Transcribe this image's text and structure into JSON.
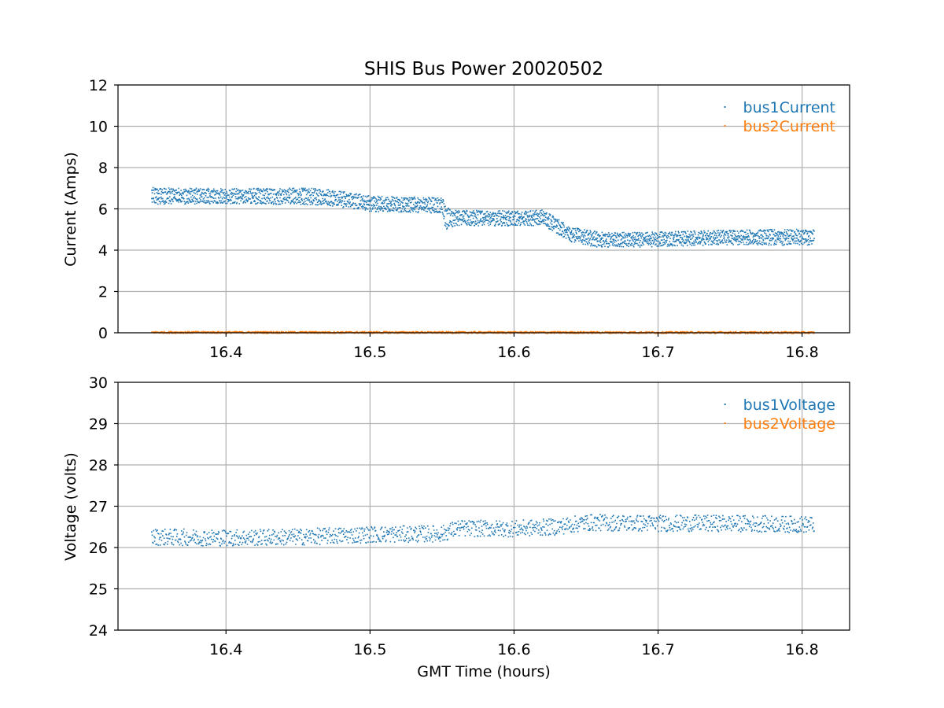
{
  "figure": {
    "title": "SHIS Bus Power 20020502"
  },
  "chart_data": [
    {
      "type": "scatter",
      "title": "SHIS Bus Power 20020502",
      "xlabel": "",
      "ylabel": "Current (Amps)",
      "xlim": [
        16.325,
        16.833
      ],
      "ylim": [
        0,
        12
      ],
      "xticks": [
        16.4,
        16.5,
        16.6,
        16.7,
        16.8
      ],
      "xtick_labels": [
        "16.4",
        "16.5",
        "16.6",
        "16.7",
        "16.8"
      ],
      "yticks": [
        0,
        2,
        4,
        6,
        8,
        10,
        12
      ],
      "ytick_labels": [
        "0",
        "2",
        "4",
        "6",
        "8",
        "10",
        "12"
      ],
      "grid": true,
      "legend_position": "top-right",
      "series": [
        {
          "name": "bus1Current",
          "color": "#1f77b4",
          "bands": [
            {
              "x": [
                16.348,
                16.4,
                16.45,
                16.47,
                16.5,
                16.55,
                16.552,
                16.56,
                16.6,
                16.62,
                16.64,
                16.66,
                16.7,
                16.75,
                16.808
              ],
              "y": [
                6.88,
                6.83,
                6.86,
                6.82,
                6.48,
                6.38,
                5.95,
                5.78,
                5.78,
                5.8,
                4.95,
                4.72,
                4.74,
                4.84,
                4.86
              ]
            },
            {
              "x": [
                16.348,
                16.4,
                16.45,
                16.47,
                16.5,
                16.55,
                16.552,
                16.56,
                16.6,
                16.62,
                16.64,
                16.66,
                16.7,
                16.75,
                16.808
              ],
              "y": [
                6.43,
                6.46,
                6.42,
                6.38,
                6.08,
                6.0,
                5.2,
                5.4,
                5.38,
                5.4,
                4.58,
                4.33,
                4.37,
                4.47,
                4.44
              ]
            }
          ]
        },
        {
          "name": "bus2Current",
          "color": "#ff7f0e",
          "bands": [
            {
              "x": [
                16.348,
                16.808
              ],
              "y": [
                0.05,
                0.04
              ]
            }
          ]
        }
      ]
    },
    {
      "type": "scatter",
      "title": "",
      "xlabel": "GMT Time (hours)",
      "ylabel": "Voltage (volts)",
      "xlim": [
        16.325,
        16.833
      ],
      "ylim": [
        24,
        30
      ],
      "xticks": [
        16.4,
        16.5,
        16.6,
        16.7,
        16.8
      ],
      "xtick_labels": [
        "16.4",
        "16.5",
        "16.6",
        "16.7",
        "16.8"
      ],
      "yticks": [
        24,
        25,
        26,
        27,
        28,
        29,
        30
      ],
      "ytick_labels": [
        "24",
        "25",
        "26",
        "27",
        "28",
        "29",
        "30"
      ],
      "grid": true,
      "legend_position": "top-right",
      "series": [
        {
          "name": "bus1Voltage",
          "color": "#1f77b4",
          "bands": [
            {
              "x": [
                16.348,
                16.4,
                16.45,
                16.5,
                16.55,
                16.56,
                16.6,
                16.63,
                16.65,
                16.7,
                16.75,
                16.808
              ],
              "y": [
                26.27,
                26.25,
                26.27,
                26.33,
                26.35,
                26.48,
                26.47,
                26.52,
                26.62,
                26.6,
                26.6,
                26.57
              ]
            }
          ]
        },
        {
          "name": "bus2Voltage",
          "color": "#ff7f0e",
          "bands": []
        }
      ]
    }
  ]
}
